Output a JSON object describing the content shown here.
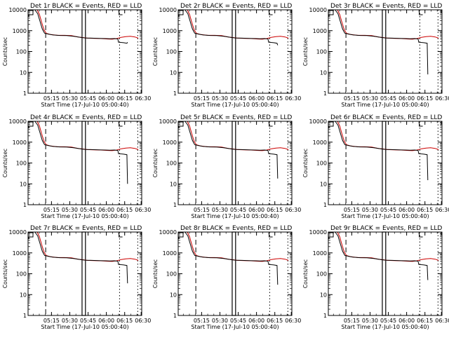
{
  "chart_data": [
    {
      "type": "line",
      "title": "Det 1r BLACK = Events, RED = LLD",
      "xlabel": "Start Time (17-Jul-10 05:00:40)",
      "ylabel": "Counts/sec",
      "ylim": [
        1,
        10000
      ],
      "y_scale": "log",
      "x_tick_labels": [
        "05:15",
        "05:30",
        "05:45",
        "06:00",
        "06:15",
        "06:30"
      ],
      "y_tick_labels": [
        "1",
        "10",
        "100",
        "1000",
        "10000"
      ],
      "black_end_value": 280
    },
    {
      "type": "line",
      "title": "Det 2r BLACK = Events, RED = LLD",
      "xlabel": "Start Time (17-Jul-10 05:00:40)",
      "ylabel": "Counts/sec",
      "ylim": [
        1,
        10000
      ],
      "y_scale": "log",
      "x_tick_labels": [
        "05:15",
        "05:30",
        "05:45",
        "06:00",
        "06:15",
        "06:30"
      ],
      "y_tick_labels": [
        "1",
        "10",
        "100",
        "1000",
        "10000"
      ],
      "black_end_value": 200
    },
    {
      "type": "line",
      "title": "Det 3r BLACK = Events, RED = LLD",
      "xlabel": "Start Time (17-Jul-10 05:00:40)",
      "ylabel": "Counts/sec",
      "ylim": [
        1,
        10000
      ],
      "y_scale": "log",
      "x_tick_labels": [
        "05:15",
        "05:30",
        "05:45",
        "06:00",
        "06:15",
        "06:30"
      ],
      "y_tick_labels": [
        "1",
        "10",
        "100",
        "1000",
        "10000"
      ],
      "black_end_value": 8
    },
    {
      "type": "line",
      "title": "Det 4r BLACK = Events, RED = LLD",
      "xlabel": "Start Time (17-Jul-10 05:00:40)",
      "ylabel": "Counts/sec",
      "ylim": [
        1,
        10000
      ],
      "y_scale": "log",
      "x_tick_labels": [
        "05:15",
        "05:30",
        "05:45",
        "06:00",
        "06:15",
        "06:30"
      ],
      "y_tick_labels": [
        "1",
        "10",
        "100",
        "1000",
        "10000"
      ],
      "black_end_value": 10
    },
    {
      "type": "line",
      "title": "Det 5r BLACK = Events, RED = LLD",
      "xlabel": "Start Time (17-Jul-10 05:00:40)",
      "ylabel": "Counts/sec",
      "ylim": [
        1,
        10000
      ],
      "y_scale": "log",
      "x_tick_labels": [
        "05:15",
        "05:30",
        "05:45",
        "06:00",
        "06:15",
        "06:30"
      ],
      "y_tick_labels": [
        "1",
        "10",
        "100",
        "1000",
        "10000"
      ],
      "black_end_value": 18
    },
    {
      "type": "line",
      "title": "Det 6r BLACK = Events, RED = LLD",
      "xlabel": "Start Time (17-Jul-10 05:00:40)",
      "ylabel": "Counts/sec",
      "ylim": [
        1,
        10000
      ],
      "y_scale": "log",
      "x_tick_labels": [
        "05:15",
        "05:30",
        "05:45",
        "06:00",
        "06:15",
        "06:30"
      ],
      "y_tick_labels": [
        "1",
        "10",
        "100",
        "1000",
        "10000"
      ],
      "black_end_value": 15
    },
    {
      "type": "line",
      "title": "Det 7r BLACK = Events, RED = LLD",
      "xlabel": "Start Time (17-Jul-10 05:00:40)",
      "ylabel": "Counts/sec",
      "ylim": [
        1,
        10000
      ],
      "y_scale": "log",
      "x_tick_labels": [
        "05:15",
        "05:30",
        "05:45",
        "06:00",
        "06:15",
        "06:30"
      ],
      "y_tick_labels": [
        "1",
        "10",
        "100",
        "1000",
        "10000"
      ],
      "black_end_value": 35
    },
    {
      "type": "line",
      "title": "Det 8r BLACK = Events, RED = LLD",
      "xlabel": "Start Time (17-Jul-10 05:00:40)",
      "ylabel": "Counts/sec",
      "ylim": [
        1,
        10000
      ],
      "y_scale": "log",
      "x_tick_labels": [
        "05:15",
        "05:30",
        "05:45",
        "06:00",
        "06:15",
        "06:30"
      ],
      "y_tick_labels": [
        "1",
        "10",
        "100",
        "1000",
        "10000"
      ],
      "black_end_value": 30
    },
    {
      "type": "line",
      "title": "Det 9r BLACK = Events, RED = LLD",
      "xlabel": "Start Time (17-Jul-10 05:00:40)",
      "ylabel": "Counts/sec",
      "ylim": [
        1,
        10000
      ],
      "y_scale": "log",
      "x_tick_labels": [
        "05:15",
        "05:30",
        "05:45",
        "06:00",
        "06:15",
        "06:30"
      ],
      "y_tick_labels": [
        "1",
        "10",
        "100",
        "1000",
        "10000"
      ],
      "black_end_value": 50
    }
  ],
  "colors": {
    "events": "#000000",
    "lld": "#cc0000",
    "background": "#ffffff"
  }
}
